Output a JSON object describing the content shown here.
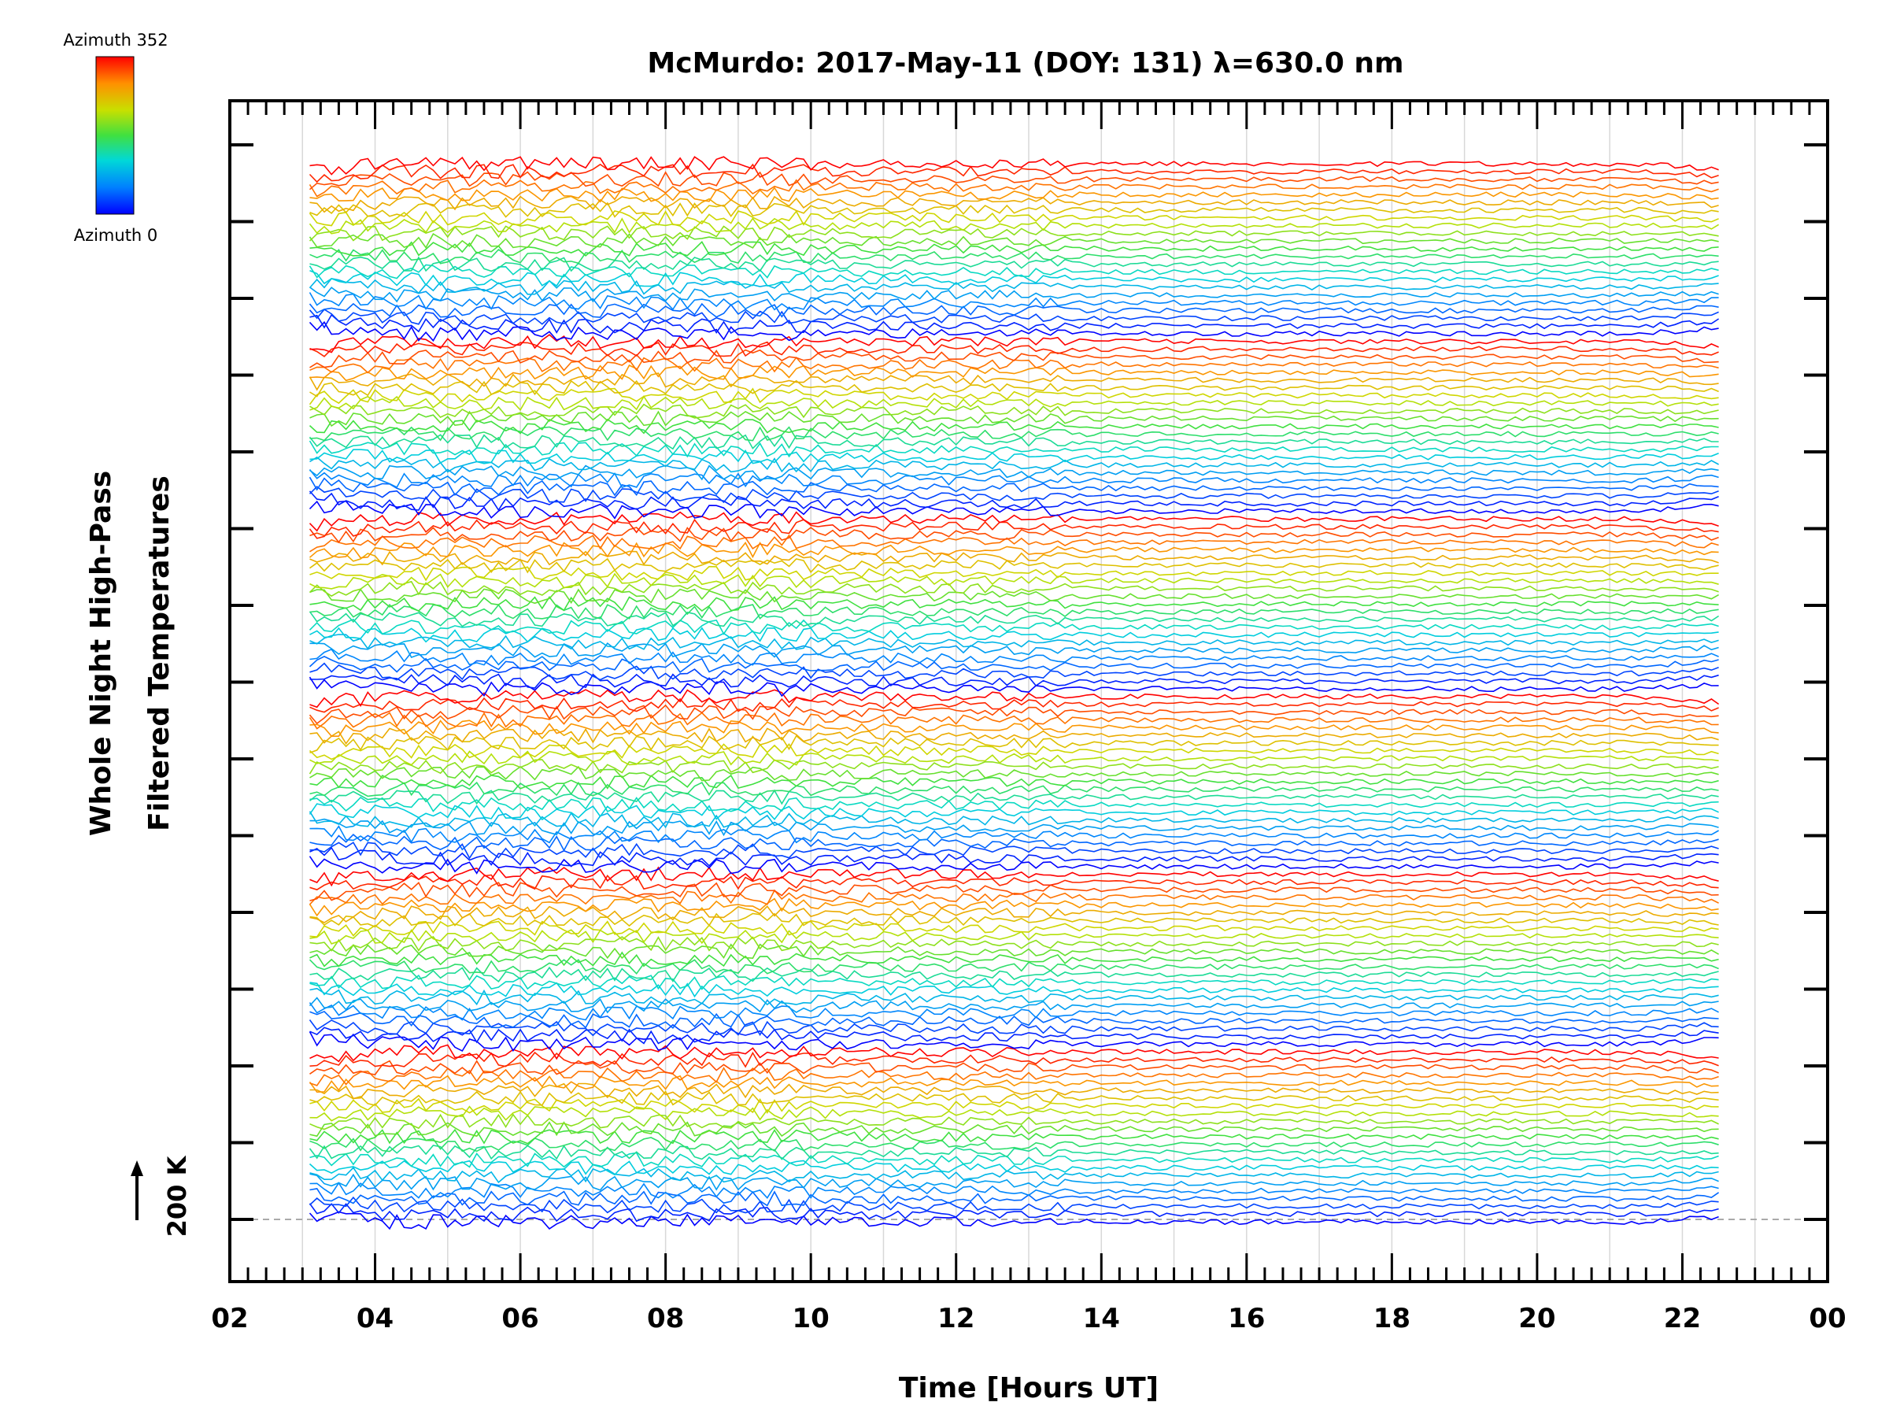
{
  "chart_data": {
    "type": "line",
    "title": "McMurdo: 2017-May-11 (DOY: 131) λ=630.0 nm",
    "xlabel": "Time [Hours UT]",
    "ylabel_line1": "Whole Night High-Pass",
    "ylabel_line2": "Filtered Temperatures",
    "x_tick_labels": [
      "02",
      "04",
      "06",
      "08",
      "10",
      "12",
      "14",
      "16",
      "18",
      "20",
      "22",
      "00"
    ],
    "xlim": [
      2,
      24
    ],
    "data_x_range": [
      3.1,
      22.5
    ],
    "y_scale_label": "200 K",
    "y_scale_value_K": 200,
    "colorbar": {
      "top_label": "Azimuth 352",
      "bottom_label": "Azimuth 0",
      "azimuth_range": [
        0,
        352
      ],
      "colormap": "rainbow"
    },
    "trace_count": 138,
    "trace_groups": [
      {
        "group": 1,
        "azimuth_range": [
          0,
          352
        ]
      },
      {
        "group": 2,
        "azimuth_range": [
          0,
          352
        ]
      },
      {
        "group": 3,
        "azimuth_range": [
          0,
          352
        ]
      },
      {
        "group": 4,
        "azimuth_range": [
          0,
          352
        ]
      },
      {
        "group": 5,
        "azimuth_range": [
          0,
          352
        ]
      },
      {
        "group": 6,
        "azimuth_range": [
          0,
          352
        ]
      }
    ],
    "grid": "vertical lines every 1 hour",
    "colors": {
      "background": "#ffffff",
      "axes": "#000000",
      "grid": "#d8d8d8",
      "baseline": "#aaaaaa"
    }
  }
}
